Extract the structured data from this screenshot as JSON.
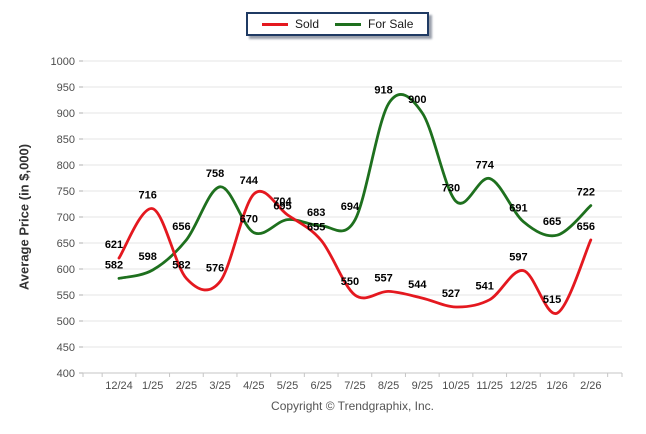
{
  "y_axis": {
    "title": "Average Price (in $,000)"
  },
  "footer": {
    "copyright": "Copyright © Trendgraphix, Inc."
  },
  "chart_data": {
    "type": "line",
    "smooth": true,
    "grid": "horizontal",
    "legend_position": "top-center",
    "title": "",
    "xlabel": "",
    "ylabel": "Average Price (in $,000)",
    "ylim": [
      400,
      1000
    ],
    "y_tick_step": 50,
    "categories": [
      "12/24",
      "1/25",
      "2/25",
      "3/25",
      "4/25",
      "5/25",
      "6/25",
      "7/25",
      "8/25",
      "9/25",
      "10/25",
      "11/25",
      "12/25",
      "1/26",
      "2/26"
    ],
    "series": [
      {
        "name": "Sold",
        "color": "#e4181f",
        "values": [
          621,
          716,
          582,
          576,
          744,
          704,
          655,
          550,
          557,
          544,
          527,
          541,
          597,
          515,
          656
        ]
      },
      {
        "name": "For Sale",
        "color": "#1e701e",
        "values": [
          582,
          598,
          656,
          758,
          670,
          695,
          683,
          694,
          918,
          900,
          730,
          774,
          691,
          665,
          722
        ]
      }
    ]
  }
}
